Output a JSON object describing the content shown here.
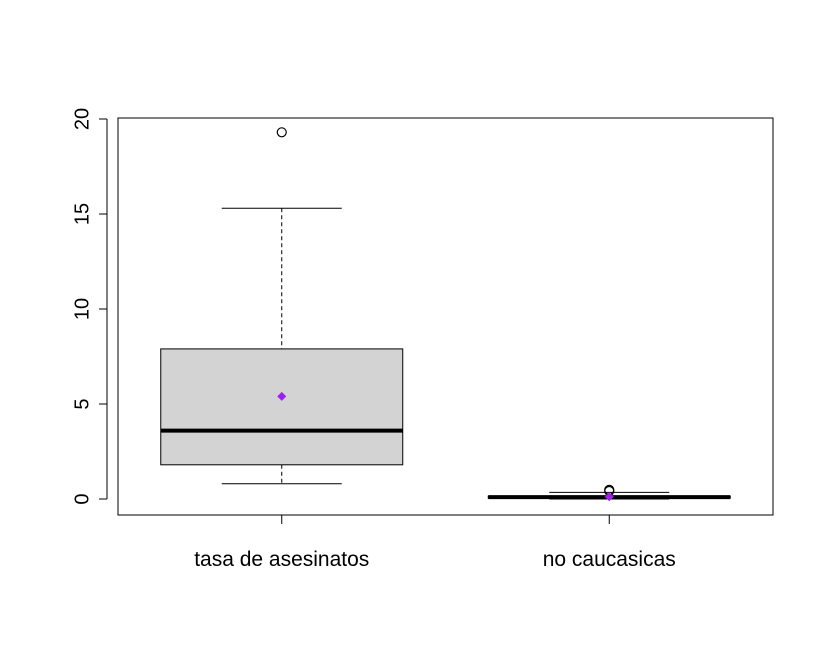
{
  "chart_data": {
    "type": "boxplot",
    "ylim": [
      -0.75,
      20.1
    ],
    "yticks": [
      "0",
      "5",
      "10",
      "15",
      "20"
    ],
    "grid": false,
    "categories": [
      "tasa de asesinatos",
      "no caucasicas"
    ],
    "boxes": [
      {
        "category": "tasa de asesinatos",
        "whisker_low": 0.8,
        "q1": 1.8,
        "median": 3.6,
        "q3": 7.9,
        "whisker_high": 15.3,
        "mean": 5.4,
        "outliers": [
          19.3
        ]
      },
      {
        "category": "no caucasicas",
        "whisker_low": 0.0,
        "q1": 0.05,
        "median": 0.1,
        "q3": 0.15,
        "whisker_high": 0.35,
        "mean": 0.12,
        "outliers": [
          0.42,
          0.48
        ]
      }
    ],
    "colors": {
      "box_fill": "#d3d3d3",
      "mean_marker": "#a020f0",
      "lines": "#000000"
    }
  }
}
